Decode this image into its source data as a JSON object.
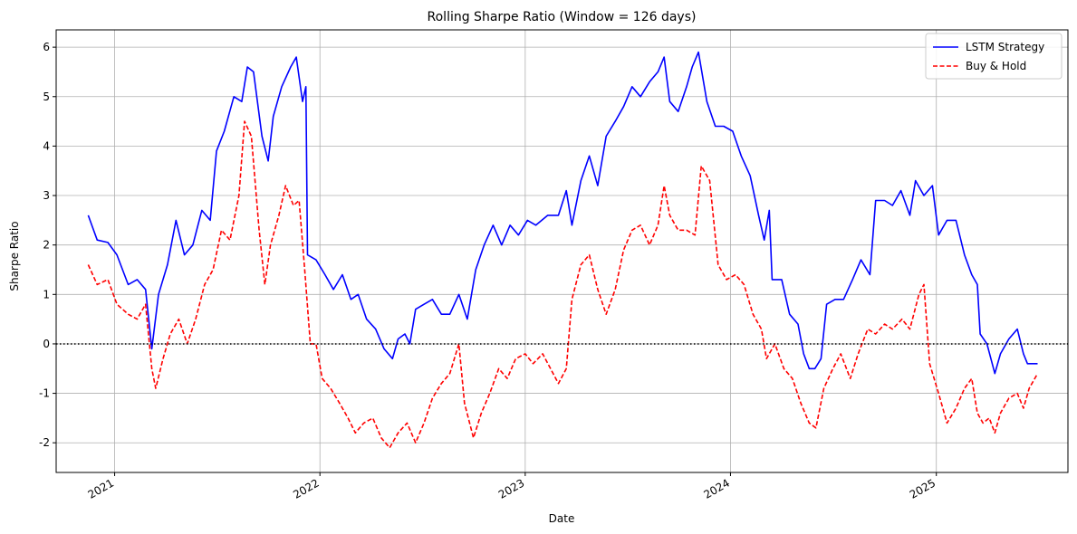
{
  "chart_data": {
    "type": "line",
    "title": "Rolling Sharpe Ratio (Window = 126 days)",
    "xlabel": "Date",
    "ylabel": "Sharpe Ratio",
    "ylim": [
      -2.6,
      6.35
    ],
    "xlim": [
      "2020-09-19",
      "2025-08-23"
    ],
    "xticks": [
      {
        "label": "2021",
        "date": "2021-01-01"
      },
      {
        "label": "2022",
        "date": "2022-01-01"
      },
      {
        "label": "2023",
        "date": "2023-01-01"
      },
      {
        "label": "2024",
        "date": "2024-01-01"
      },
      {
        "label": "2025",
        "date": "2025-01-01"
      }
    ],
    "yticks": [
      -2,
      -1,
      0,
      1,
      2,
      3,
      4,
      5,
      6
    ],
    "grid": true,
    "legend_position": "top-right",
    "reference_line": {
      "y": 0,
      "style": "dotted",
      "color": "#000000"
    },
    "series": [
      {
        "name": "LSTM Strategy",
        "color": "#0000ff",
        "dash": "solid",
        "points": [
          [
            "2020-11-15",
            2.6
          ],
          [
            "2020-12-01",
            2.1
          ],
          [
            "2020-12-20",
            2.05
          ],
          [
            "2021-01-05",
            1.8
          ],
          [
            "2021-01-25",
            1.2
          ],
          [
            "2021-02-10",
            1.3
          ],
          [
            "2021-02-25",
            1.1
          ],
          [
            "2021-03-08",
            -0.1
          ],
          [
            "2021-03-20",
            1.0
          ],
          [
            "2021-04-05",
            1.6
          ],
          [
            "2021-04-20",
            2.5
          ],
          [
            "2021-05-05",
            1.8
          ],
          [
            "2021-05-20",
            2.0
          ],
          [
            "2021-06-05",
            2.7
          ],
          [
            "2021-06-20",
            2.5
          ],
          [
            "2021-07-01",
            3.9
          ],
          [
            "2021-07-15",
            4.3
          ],
          [
            "2021-08-01",
            5.0
          ],
          [
            "2021-08-15",
            4.9
          ],
          [
            "2021-08-25",
            5.6
          ],
          [
            "2021-09-05",
            5.5
          ],
          [
            "2021-09-20",
            4.2
          ],
          [
            "2021-10-01",
            3.7
          ],
          [
            "2021-10-10",
            4.6
          ],
          [
            "2021-10-25",
            5.2
          ],
          [
            "2021-11-10",
            5.6
          ],
          [
            "2021-11-20",
            5.8
          ],
          [
            "2021-12-01",
            4.9
          ],
          [
            "2021-12-07",
            5.2
          ],
          [
            "2021-12-10",
            1.8
          ],
          [
            "2021-12-25",
            1.7
          ],
          [
            "2022-01-10",
            1.4
          ],
          [
            "2022-01-25",
            1.1
          ],
          [
            "2022-02-10",
            1.4
          ],
          [
            "2022-02-25",
            0.9
          ],
          [
            "2022-03-10",
            1.0
          ],
          [
            "2022-03-25",
            0.5
          ],
          [
            "2022-04-10",
            0.3
          ],
          [
            "2022-04-25",
            -0.1
          ],
          [
            "2022-05-10",
            -0.3
          ],
          [
            "2022-05-20",
            0.1
          ],
          [
            "2022-06-01",
            0.2
          ],
          [
            "2022-06-10",
            0.0
          ],
          [
            "2022-06-20",
            0.7
          ],
          [
            "2022-07-05",
            0.8
          ],
          [
            "2022-07-20",
            0.9
          ],
          [
            "2022-08-05",
            0.6
          ],
          [
            "2022-08-20",
            0.6
          ],
          [
            "2022-09-05",
            1.0
          ],
          [
            "2022-09-20",
            0.5
          ],
          [
            "2022-10-05",
            1.5
          ],
          [
            "2022-10-20",
            2.0
          ],
          [
            "2022-11-05",
            2.4
          ],
          [
            "2022-11-20",
            2.0
          ],
          [
            "2022-12-05",
            2.4
          ],
          [
            "2022-12-20",
            2.2
          ],
          [
            "2023-01-05",
            2.5
          ],
          [
            "2023-01-20",
            2.4
          ],
          [
            "2023-02-10",
            2.6
          ],
          [
            "2023-03-01",
            2.6
          ],
          [
            "2023-03-15",
            3.1
          ],
          [
            "2023-03-25",
            2.4
          ],
          [
            "2023-04-10",
            3.3
          ],
          [
            "2023-04-25",
            3.8
          ],
          [
            "2023-05-10",
            3.2
          ],
          [
            "2023-05-25",
            4.2
          ],
          [
            "2023-06-10",
            4.5
          ],
          [
            "2023-06-25",
            4.8
          ],
          [
            "2023-07-10",
            5.2
          ],
          [
            "2023-07-25",
            5.0
          ],
          [
            "2023-08-10",
            5.3
          ],
          [
            "2023-08-25",
            5.5
          ],
          [
            "2023-09-05",
            5.8
          ],
          [
            "2023-09-15",
            4.9
          ],
          [
            "2023-09-30",
            4.7
          ],
          [
            "2023-10-15",
            5.2
          ],
          [
            "2023-10-25",
            5.6
          ],
          [
            "2023-11-05",
            5.9
          ],
          [
            "2023-11-20",
            4.9
          ],
          [
            "2023-12-05",
            4.4
          ],
          [
            "2023-12-20",
            4.4
          ],
          [
            "2024-01-05",
            4.3
          ],
          [
            "2024-01-20",
            3.8
          ],
          [
            "2024-02-05",
            3.4
          ],
          [
            "2024-02-20",
            2.6
          ],
          [
            "2024-03-01",
            2.1
          ],
          [
            "2024-03-10",
            2.7
          ],
          [
            "2024-03-15",
            1.3
          ],
          [
            "2024-04-01",
            1.3
          ],
          [
            "2024-04-15",
            0.6
          ],
          [
            "2024-04-30",
            0.4
          ],
          [
            "2024-05-10",
            -0.2
          ],
          [
            "2024-05-20",
            -0.5
          ],
          [
            "2024-05-30",
            -0.5
          ],
          [
            "2024-06-10",
            -0.3
          ],
          [
            "2024-06-20",
            0.8
          ],
          [
            "2024-07-05",
            0.9
          ],
          [
            "2024-07-20",
            0.9
          ],
          [
            "2024-08-05",
            1.3
          ],
          [
            "2024-08-20",
            1.7
          ],
          [
            "2024-09-05",
            1.4
          ],
          [
            "2024-09-15",
            2.9
          ],
          [
            "2024-10-01",
            2.9
          ],
          [
            "2024-10-15",
            2.8
          ],
          [
            "2024-10-30",
            3.1
          ],
          [
            "2024-11-15",
            2.6
          ],
          [
            "2024-11-25",
            3.3
          ],
          [
            "2024-12-10",
            3.0
          ],
          [
            "2024-12-25",
            3.2
          ],
          [
            "2025-01-05",
            2.2
          ],
          [
            "2025-01-20",
            2.5
          ],
          [
            "2025-02-05",
            2.5
          ],
          [
            "2025-02-20",
            1.8
          ],
          [
            "2025-03-05",
            1.4
          ],
          [
            "2025-03-15",
            1.2
          ],
          [
            "2025-03-20",
            0.2
          ],
          [
            "2025-04-01",
            0.0
          ],
          [
            "2025-04-15",
            -0.6
          ],
          [
            "2025-04-25",
            -0.2
          ],
          [
            "2025-05-10",
            0.1
          ],
          [
            "2025-05-25",
            0.3
          ],
          [
            "2025-06-05",
            -0.2
          ],
          [
            "2025-06-12",
            -0.4
          ],
          [
            "2025-06-30",
            -0.4
          ]
        ]
      },
      {
        "name": "Buy & Hold",
        "color": "#ff0000",
        "dash": "dashed",
        "points": [
          [
            "2020-11-15",
            1.6
          ],
          [
            "2020-12-01",
            1.2
          ],
          [
            "2020-12-20",
            1.3
          ],
          [
            "2021-01-05",
            0.8
          ],
          [
            "2021-01-25",
            0.6
          ],
          [
            "2021-02-10",
            0.5
          ],
          [
            "2021-02-25",
            0.8
          ],
          [
            "2021-03-08",
            -0.5
          ],
          [
            "2021-03-15",
            -0.9
          ],
          [
            "2021-03-28",
            -0.3
          ],
          [
            "2021-04-10",
            0.2
          ],
          [
            "2021-04-25",
            0.5
          ],
          [
            "2021-05-10",
            0.0
          ],
          [
            "2021-05-25",
            0.5
          ],
          [
            "2021-06-10",
            1.2
          ],
          [
            "2021-06-25",
            1.5
          ],
          [
            "2021-07-10",
            2.3
          ],
          [
            "2021-07-25",
            2.1
          ],
          [
            "2021-08-10",
            3.0
          ],
          [
            "2021-08-20",
            4.5
          ],
          [
            "2021-09-01",
            4.2
          ],
          [
            "2021-09-15",
            2.3
          ],
          [
            "2021-09-25",
            1.2
          ],
          [
            "2021-10-05",
            2.0
          ],
          [
            "2021-10-20",
            2.6
          ],
          [
            "2021-11-01",
            3.2
          ],
          [
            "2021-11-15",
            2.8
          ],
          [
            "2021-11-25",
            2.9
          ],
          [
            "2021-12-05",
            1.5
          ],
          [
            "2021-12-15",
            0.0
          ],
          [
            "2021-12-25",
            0.0
          ],
          [
            "2022-01-05",
            -0.7
          ],
          [
            "2022-01-20",
            -0.9
          ],
          [
            "2022-02-05",
            -1.2
          ],
          [
            "2022-02-20",
            -1.5
          ],
          [
            "2022-03-05",
            -1.8
          ],
          [
            "2022-03-20",
            -1.6
          ],
          [
            "2022-04-05",
            -1.5
          ],
          [
            "2022-04-20",
            -1.9
          ],
          [
            "2022-05-05",
            -2.1
          ],
          [
            "2022-05-20",
            -1.8
          ],
          [
            "2022-06-05",
            -1.6
          ],
          [
            "2022-06-20",
            -2.0
          ],
          [
            "2022-07-05",
            -1.6
          ],
          [
            "2022-07-20",
            -1.1
          ],
          [
            "2022-08-05",
            -0.8
          ],
          [
            "2022-08-20",
            -0.6
          ],
          [
            "2022-09-05",
            -0.0
          ],
          [
            "2022-09-15",
            -1.2
          ],
          [
            "2022-10-01",
            -1.9
          ],
          [
            "2022-10-15",
            -1.4
          ],
          [
            "2022-10-30",
            -1.0
          ],
          [
            "2022-11-15",
            -0.5
          ],
          [
            "2022-11-30",
            -0.7
          ],
          [
            "2022-12-15",
            -0.3
          ],
          [
            "2023-01-01",
            -0.2
          ],
          [
            "2023-01-15",
            -0.4
          ],
          [
            "2023-02-01",
            -0.2
          ],
          [
            "2023-02-15",
            -0.5
          ],
          [
            "2023-03-01",
            -0.8
          ],
          [
            "2023-03-15",
            -0.5
          ],
          [
            "2023-03-25",
            0.9
          ],
          [
            "2023-04-10",
            1.6
          ],
          [
            "2023-04-25",
            1.8
          ],
          [
            "2023-05-10",
            1.1
          ],
          [
            "2023-05-25",
            0.6
          ],
          [
            "2023-06-10",
            1.1
          ],
          [
            "2023-06-25",
            1.9
          ],
          [
            "2023-07-10",
            2.3
          ],
          [
            "2023-07-25",
            2.4
          ],
          [
            "2023-08-10",
            2.0
          ],
          [
            "2023-08-25",
            2.4
          ],
          [
            "2023-09-05",
            3.2
          ],
          [
            "2023-09-15",
            2.6
          ],
          [
            "2023-09-30",
            2.3
          ],
          [
            "2023-10-15",
            2.3
          ],
          [
            "2023-10-30",
            2.2
          ],
          [
            "2023-11-10",
            3.6
          ],
          [
            "2023-11-25",
            3.3
          ],
          [
            "2023-12-10",
            1.6
          ],
          [
            "2023-12-25",
            1.3
          ],
          [
            "2024-01-10",
            1.4
          ],
          [
            "2024-01-25",
            1.2
          ],
          [
            "2024-02-10",
            0.6
          ],
          [
            "2024-02-25",
            0.3
          ],
          [
            "2024-03-05",
            -0.3
          ],
          [
            "2024-03-20",
            0.0
          ],
          [
            "2024-04-05",
            -0.5
          ],
          [
            "2024-04-20",
            -0.7
          ],
          [
            "2024-05-05",
            -1.2
          ],
          [
            "2024-05-20",
            -1.6
          ],
          [
            "2024-06-01",
            -1.7
          ],
          [
            "2024-06-15",
            -0.9
          ],
          [
            "2024-07-01",
            -0.5
          ],
          [
            "2024-07-15",
            -0.2
          ],
          [
            "2024-08-01",
            -0.7
          ],
          [
            "2024-08-15",
            -0.2
          ],
          [
            "2024-09-01",
            0.3
          ],
          [
            "2024-09-15",
            0.2
          ],
          [
            "2024-10-01",
            0.4
          ],
          [
            "2024-10-15",
            0.3
          ],
          [
            "2024-11-01",
            0.5
          ],
          [
            "2024-11-15",
            0.3
          ],
          [
            "2024-12-01",
            1.0
          ],
          [
            "2024-12-10",
            1.2
          ],
          [
            "2024-12-20",
            -0.4
          ],
          [
            "2025-01-05",
            -1.0
          ],
          [
            "2025-01-20",
            -1.6
          ],
          [
            "2025-02-05",
            -1.3
          ],
          [
            "2025-02-20",
            -0.9
          ],
          [
            "2025-03-05",
            -0.7
          ],
          [
            "2025-03-15",
            -1.4
          ],
          [
            "2025-03-25",
            -1.6
          ],
          [
            "2025-04-05",
            -1.5
          ],
          [
            "2025-04-15",
            -1.8
          ],
          [
            "2025-04-25",
            -1.4
          ],
          [
            "2025-05-10",
            -1.1
          ],
          [
            "2025-05-25",
            -1.0
          ],
          [
            "2025-06-05",
            -1.3
          ],
          [
            "2025-06-15",
            -0.9
          ],
          [
            "2025-06-30",
            -0.6
          ]
        ]
      }
    ]
  }
}
